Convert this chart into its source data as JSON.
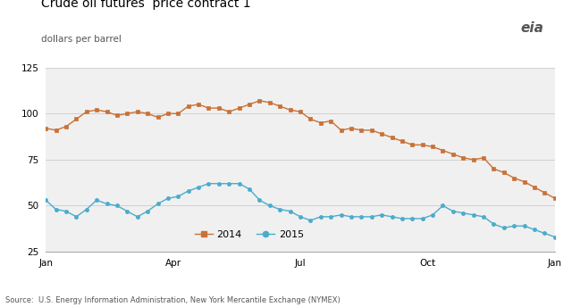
{
  "title": "Crude oil futures  price contract 1",
  "subtitle": "dollars per barrel",
  "source": "Source:  U.S. Energy Information Administration, New York Mercantile Exchange (NYMEX)",
  "ylim": [
    25,
    125
  ],
  "yticks": [
    25,
    50,
    75,
    100,
    125
  ],
  "color_2014": "#C87137",
  "color_2015": "#4AACCC",
  "bg_color": "#F0F0F0",
  "grid_color": "#CCCCCC",
  "data_2014": [
    92,
    91,
    93,
    97,
    101,
    102,
    101,
    99,
    100,
    101,
    100,
    98,
    100,
    100,
    104,
    105,
    103,
    103,
    101,
    103,
    105,
    107,
    106,
    104,
    102,
    101,
    97,
    95,
    96,
    91,
    92,
    91,
    91,
    89,
    87,
    85,
    83,
    83,
    82,
    80,
    78,
    76,
    75,
    76,
    70,
    68,
    65,
    63,
    60,
    57,
    54
  ],
  "data_2015": [
    53,
    48,
    47,
    44,
    48,
    53,
    51,
    50,
    47,
    44,
    47,
    51,
    54,
    55,
    58,
    60,
    62,
    62,
    62,
    62,
    59,
    53,
    50,
    48,
    47,
    44,
    42,
    44,
    44,
    45,
    44,
    44,
    44,
    45,
    44,
    43,
    43,
    43,
    45,
    50,
    47,
    46,
    45,
    44,
    40,
    38,
    39,
    39,
    37,
    35,
    33
  ],
  "legend_label_2014": "2014",
  "legend_label_2015": "2015",
  "xtick_pos": [
    0,
    3,
    6,
    9,
    12
  ],
  "xtick_labels": [
    "Jan",
    "Apr",
    "Jul",
    "Oct",
    "Jan"
  ]
}
